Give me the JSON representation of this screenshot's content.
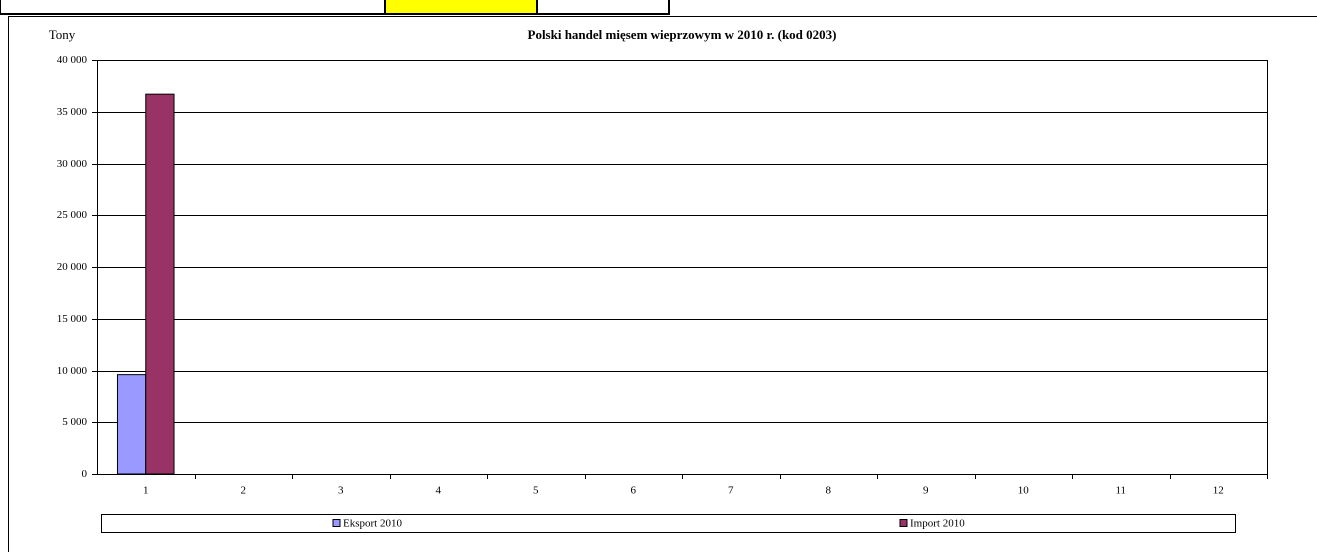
{
  "chart_data": {
    "type": "bar",
    "title": "Polski handel mięsem wieprzowym w 2010 r. (kod 0203)",
    "y_label": "Tony",
    "categories": [
      "1",
      "2",
      "3",
      "4",
      "5",
      "6",
      "7",
      "8",
      "9",
      "10",
      "11",
      "12"
    ],
    "series": [
      {
        "name": "Eksport 2010",
        "color": "#9999ff",
        "values": [
          9600,
          null,
          null,
          null,
          null,
          null,
          null,
          null,
          null,
          null,
          null,
          null
        ]
      },
      {
        "name": "Import 2010",
        "color": "#993366",
        "values": [
          36700,
          null,
          null,
          null,
          null,
          null,
          null,
          null,
          null,
          null,
          null,
          null
        ]
      }
    ],
    "ylim": [
      0,
      40000
    ],
    "yticks": [
      0,
      {
        "value": 5000,
        "label": "5 000"
      },
      {
        "value": 10000,
        "label": "10 000"
      },
      {
        "value": 15000,
        "label": "15 000"
      },
      {
        "value": 20000,
        "label": "20 000"
      },
      {
        "value": 25000,
        "label": "25 000"
      },
      {
        "value": 30000,
        "label": "30 000"
      },
      {
        "value": 35000,
        "label": "35 000"
      },
      {
        "value": 40000,
        "label": "40 000"
      }
    ],
    "grid": true,
    "legend": "bottom"
  }
}
